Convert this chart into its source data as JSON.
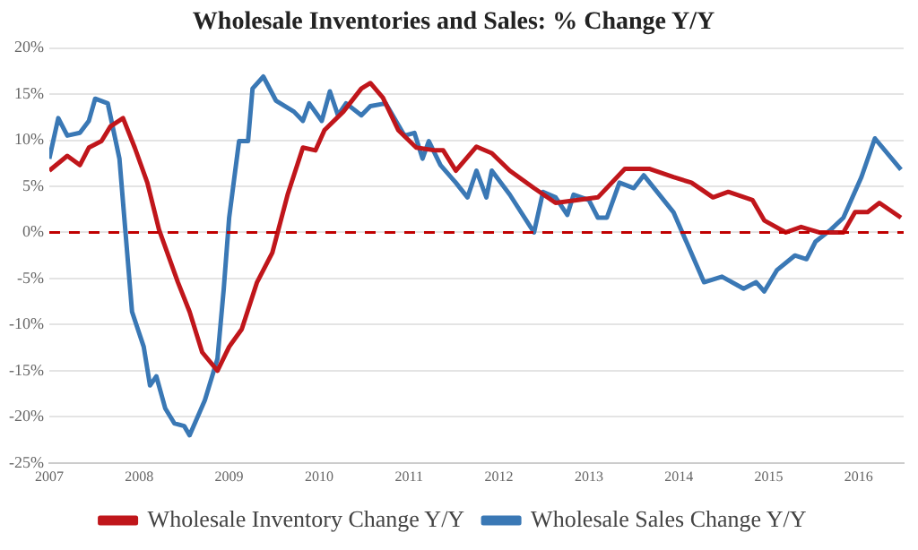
{
  "chart_data": {
    "type": "line",
    "title": "Wholesale Inventories and Sales: % Change Y/Y",
    "xlim": [
      2007,
      2016.5
    ],
    "xticks": [
      2007,
      2008,
      2009,
      2010,
      2011,
      2012,
      2013,
      2014,
      2015,
      2016
    ],
    "ylim": [
      -25,
      20
    ],
    "yticks": [
      {
        "value": -25,
        "label": "-25%"
      },
      {
        "value": -20,
        "label": "-20%"
      },
      {
        "value": -15,
        "label": "-15%"
      },
      {
        "value": -10,
        "label": "-10%"
      },
      {
        "value": -5,
        "label": "-5%"
      },
      {
        "value": 0,
        "label": "0%"
      },
      {
        "value": 5,
        "label": "5%"
      },
      {
        "value": 10,
        "label": "10%"
      },
      {
        "value": 15,
        "label": "15%"
      },
      {
        "value": 20,
        "label": "20%"
      }
    ],
    "grid": "y",
    "legend": "bottom",
    "marker": "none",
    "ref_lines": [
      {
        "axis": "y",
        "value": 0,
        "color": "#c00000",
        "line_style": "dashed"
      }
    ],
    "series": [
      {
        "name": "Wholesale Inventory Change Y/Y",
        "color": "#c0161b",
        "x": [
          2007.0,
          2007.2,
          2007.34,
          2007.44,
          2007.58,
          2007.68,
          2007.82,
          2007.95,
          2008.09,
          2008.22,
          2008.43,
          2008.56,
          2008.7,
          2008.87,
          2009.0,
          2009.14,
          2009.31,
          2009.48,
          2009.65,
          2009.82,
          2009.96,
          2010.06,
          2010.27,
          2010.47,
          2010.57,
          2010.71,
          2010.88,
          2011.08,
          2011.29,
          2011.38,
          2011.52,
          2011.75,
          2011.92,
          2012.12,
          2012.39,
          2012.63,
          2012.86,
          2013.1,
          2013.4,
          2013.67,
          2013.94,
          2014.14,
          2014.38,
          2014.55,
          2014.82,
          2014.95,
          2015.19,
          2015.36,
          2015.56,
          2015.83,
          2015.96,
          2016.1,
          2016.23,
          2016.47
        ],
        "values": [
          6.7,
          8.3,
          7.3,
          9.2,
          9.9,
          11.5,
          12.4,
          9.2,
          5.4,
          0.3,
          -5.4,
          -8.6,
          -13,
          -15,
          -12.4,
          -10.5,
          -5.4,
          -2.2,
          4.1,
          9.2,
          8.9,
          11.1,
          13.1,
          15.6,
          16.2,
          14.6,
          11.1,
          9.2,
          8.9,
          8.9,
          6.7,
          9.3,
          8.6,
          6.7,
          4.8,
          3.2,
          3.5,
          3.8,
          6.9,
          6.9,
          6.0,
          5.4,
          3.8,
          4.4,
          3.5,
          1.3,
          0,
          0.6,
          0,
          0,
          2.2,
          2.2,
          3.2,
          1.6
        ]
      },
      {
        "name": "Wholesale Sales Change Y/Y",
        "color": "#3a78b5",
        "x": [
          2007.0,
          2007.1,
          2007.2,
          2007.34,
          2007.44,
          2007.51,
          2007.65,
          2007.78,
          2007.92,
          2008.05,
          2008.12,
          2008.19,
          2008.29,
          2008.39,
          2008.5,
          2008.56,
          2008.73,
          2008.87,
          2008.94,
          2009.0,
          2009.11,
          2009.21,
          2009.26,
          2009.38,
          2009.52,
          2009.72,
          2009.82,
          2009.89,
          2010.03,
          2010.12,
          2010.21,
          2010.3,
          2010.47,
          2010.57,
          2010.74,
          2010.95,
          2011.06,
          2011.15,
          2011.22,
          2011.35,
          2011.52,
          2011.65,
          2011.75,
          2011.86,
          2011.92,
          2012.12,
          2012.39,
          2012.49,
          2012.63,
          2012.76,
          2012.83,
          2013.0,
          2013.1,
          2013.2,
          2013.34,
          2013.5,
          2013.61,
          2013.94,
          2014.28,
          2014.48,
          2014.72,
          2014.86,
          2014.95,
          2015.09,
          2015.29,
          2015.42,
          2015.52,
          2015.69,
          2015.83,
          2016.03,
          2016.18,
          2016.47
        ],
        "values": [
          8.0,
          12.4,
          10.5,
          10.8,
          12.1,
          14.5,
          14.0,
          8.0,
          -8.6,
          -12.4,
          -16.6,
          -15.6,
          -19.1,
          -20.7,
          -21.0,
          -22,
          -18.2,
          -13.7,
          -6.1,
          1.6,
          9.9,
          9.9,
          15.6,
          16.9,
          14.3,
          13.1,
          12.1,
          14.0,
          12.1,
          15.3,
          12.7,
          14.0,
          12.7,
          13.7,
          14.0,
          10.5,
          10.8,
          8.0,
          9.9,
          7.3,
          5.4,
          3.8,
          6.7,
          3.8,
          6.7,
          4.1,
          0,
          4.4,
          3.8,
          1.9,
          4.1,
          3.5,
          1.6,
          1.6,
          5.4,
          4.8,
          6.2,
          2.2,
          -5.4,
          -4.8,
          -6.1,
          -5.4,
          -6.4,
          -4.1,
          -2.5,
          -2.9,
          -1.0,
          0.3,
          1.6,
          6.0,
          10.2,
          6.8
        ]
      }
    ]
  }
}
